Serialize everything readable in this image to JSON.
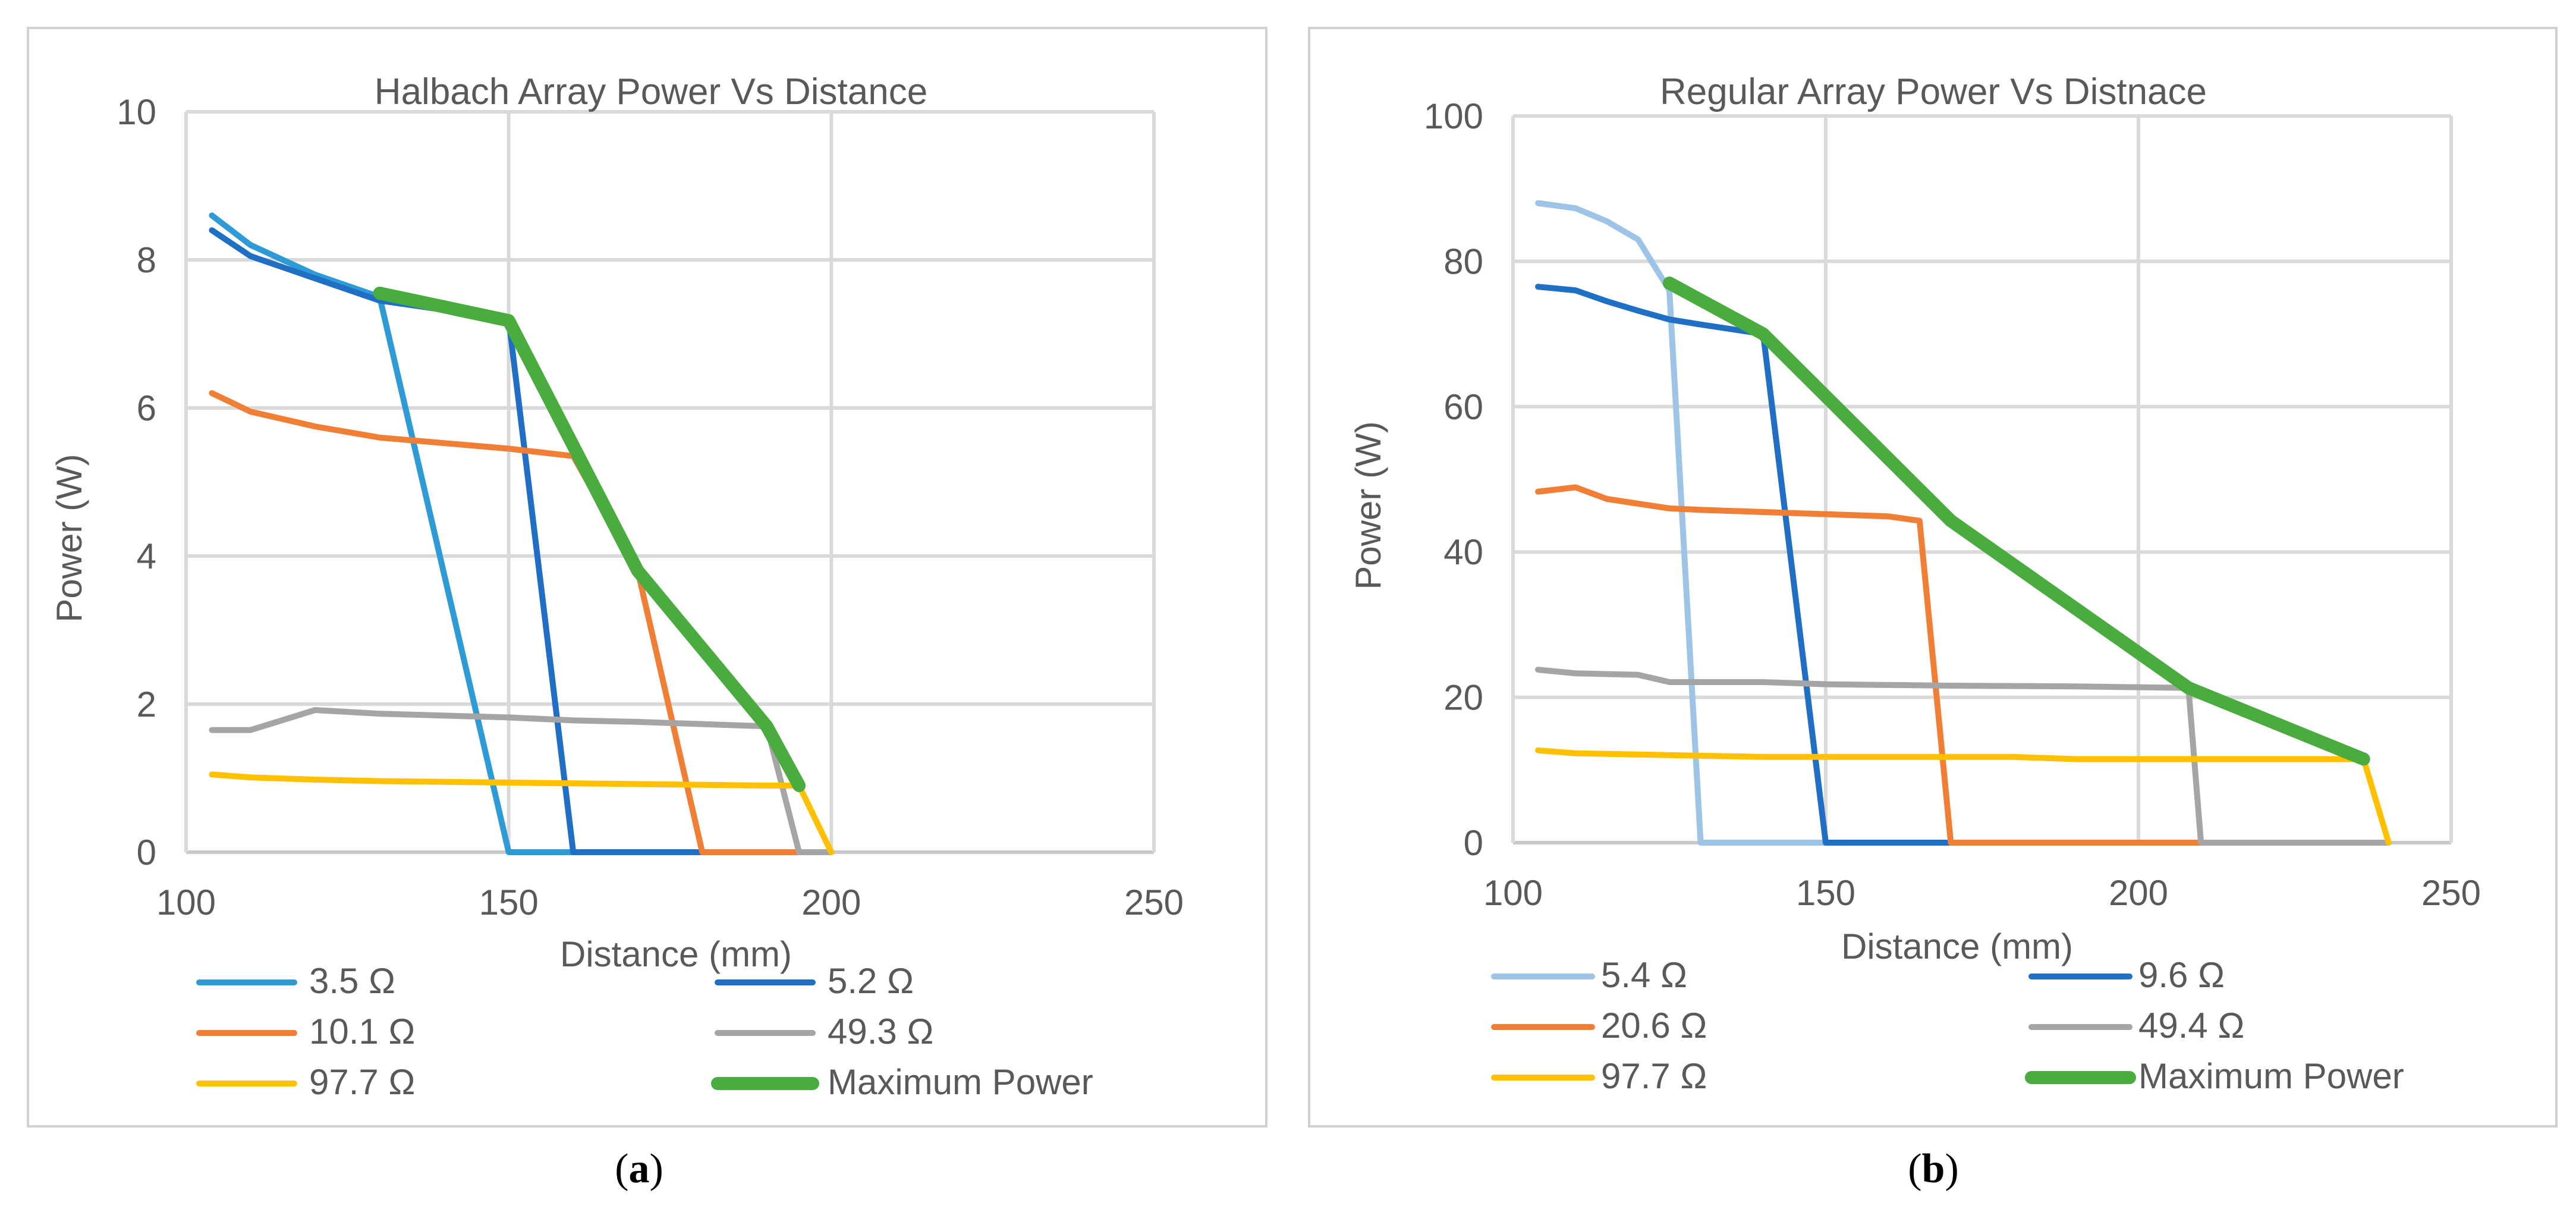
{
  "chart_data": [
    {
      "type": "line",
      "caption": "a",
      "title": "Halbach Array Power Vs Distance",
      "xlabel": "Distance (mm)",
      "ylabel": "Power (W)",
      "xlim": [
        100,
        250
      ],
      "ylim": [
        0,
        10
      ],
      "xticks": [
        "100",
        "150",
        "200",
        "250"
      ],
      "yticks": [
        "0",
        "2",
        "4",
        "6",
        "8",
        "10"
      ],
      "legend_position": "bottom",
      "series": [
        {
          "name": "3.5 Ω",
          "color": "#2e9bd6",
          "x": [
            104,
            110,
            120,
            130,
            150,
            160,
            170,
            180,
            190,
            195,
            200
          ],
          "y": [
            8.6,
            8.2,
            7.8,
            7.5,
            0,
            0,
            0,
            0,
            0,
            0,
            0
          ]
        },
        {
          "name": "5.2 Ω",
          "color": "#1f6fc5",
          "x": [
            104,
            110,
            120,
            130,
            150,
            160,
            170,
            180,
            190,
            195,
            200
          ],
          "y": [
            8.4,
            8.05,
            7.75,
            7.45,
            7.2,
            0,
            0,
            0,
            0,
            0,
            0
          ]
        },
        {
          "name": "10.1 Ω",
          "color": "#f07f35",
          "x": [
            104,
            110,
            120,
            130,
            150,
            160,
            170,
            180,
            190,
            195
          ],
          "y": [
            6.2,
            5.95,
            5.75,
            5.6,
            5.45,
            5.35,
            3.8,
            0,
            0,
            0
          ]
        },
        {
          "name": "49.3 Ω",
          "color": "#a5a5a5",
          "x": [
            104,
            110,
            120,
            130,
            150,
            160,
            170,
            180,
            190,
            195,
            200
          ],
          "y": [
            1.65,
            1.65,
            1.92,
            1.87,
            1.82,
            1.78,
            1.76,
            1.73,
            1.7,
            0,
            0
          ]
        },
        {
          "name": "97.7 Ω",
          "color": "#ffc000",
          "x": [
            104,
            110,
            120,
            130,
            150,
            160,
            170,
            180,
            190,
            195,
            200
          ],
          "y": [
            1.05,
            1.01,
            0.98,
            0.96,
            0.94,
            0.93,
            0.92,
            0.91,
            0.9,
            0.9,
            0
          ]
        },
        {
          "name": "Maximum Power",
          "color": "#4aab3f",
          "x": [
            130,
            150,
            170,
            190,
            195
          ],
          "y": [
            7.55,
            7.18,
            3.8,
            1.7,
            0.9
          ]
        }
      ]
    },
    {
      "type": "line",
      "caption": "b",
      "title": "Regular Array Power Vs Distnace",
      "xlabel": "Distance (mm)",
      "ylabel": "Power (W)",
      "xlim": [
        100,
        250
      ],
      "ylim": [
        0,
        100
      ],
      "xticks": [
        "100",
        "150",
        "200",
        "250"
      ],
      "yticks": [
        "0",
        "20",
        "40",
        "60",
        "80",
        "100"
      ],
      "legend_position": "bottom",
      "series": [
        {
          "name": "5.4 Ω",
          "color": "#9dc3e6",
          "x": [
            104,
            110,
            115,
            120,
            125,
            130,
            150
          ],
          "y": [
            88,
            87.3,
            85.5,
            83,
            76,
            0,
            0
          ]
        },
        {
          "name": "9.6 Ω",
          "color": "#1f6fc5",
          "x": [
            104,
            110,
            115,
            120,
            125,
            130,
            140,
            150,
            170
          ],
          "y": [
            76.5,
            76,
            74.5,
            73.2,
            72,
            71.3,
            70,
            0,
            0
          ]
        },
        {
          "name": "20.6 Ω",
          "color": "#f07f35",
          "x": [
            104,
            110,
            115,
            125,
            130,
            140,
            150,
            160,
            165,
            170,
            210
          ],
          "y": [
            48.3,
            48.9,
            47.3,
            46,
            45.8,
            45.5,
            45.2,
            44.9,
            44.3,
            0,
            0
          ]
        },
        {
          "name": "49.4 Ω",
          "color": "#a5a5a5",
          "x": [
            104,
            110,
            120,
            125,
            140,
            150,
            170,
            190,
            208,
            210,
            240
          ],
          "y": [
            23.8,
            23.3,
            23.1,
            22.1,
            22.1,
            21.8,
            21.6,
            21.5,
            21.3,
            0,
            0
          ]
        },
        {
          "name": "97.7 Ω",
          "color": "#ffc000",
          "x": [
            104,
            110,
            140,
            150,
            180,
            190,
            200,
            236,
            240
          ],
          "y": [
            12.7,
            12.3,
            11.8,
            11.8,
            11.8,
            11.5,
            11.5,
            11.5,
            0
          ]
        },
        {
          "name": "Maximum Power",
          "color": "#4aab3f",
          "x": [
            125,
            140,
            170,
            208,
            236
          ],
          "y": [
            77,
            70,
            44.3,
            21.3,
            11.5
          ]
        }
      ]
    }
  ]
}
